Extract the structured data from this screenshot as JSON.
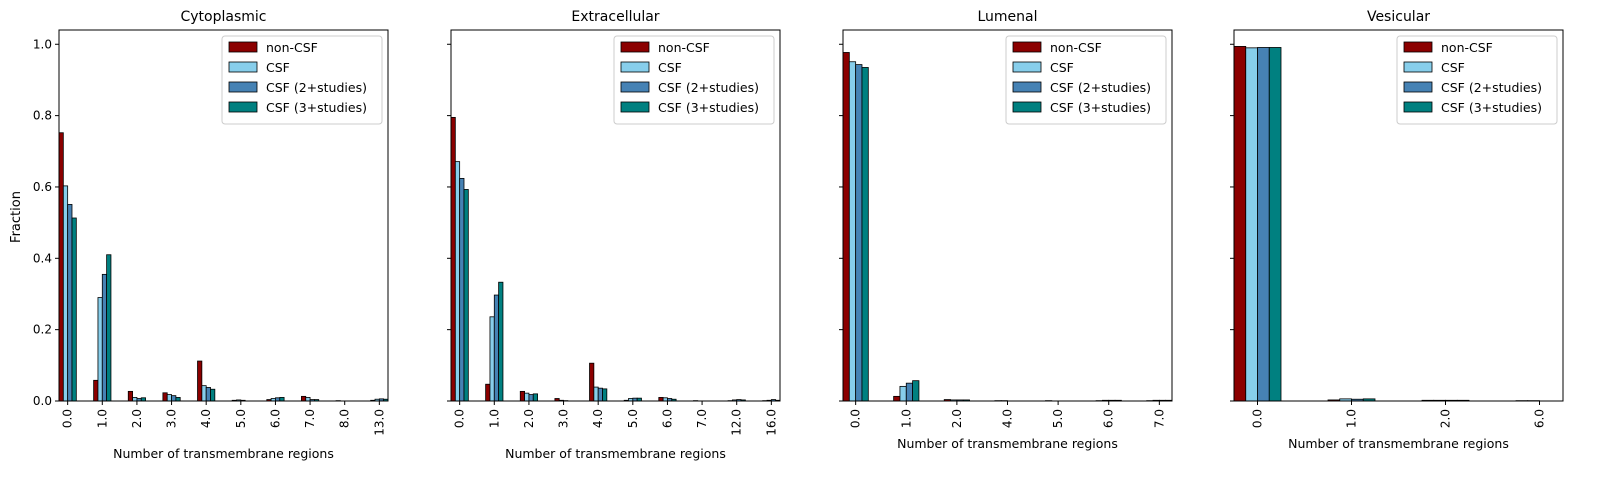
{
  "figure": {
    "ylabel": "Fraction",
    "xlabel": "Number of transmembrane regions",
    "ylim": [
      0,
      1.04
    ],
    "yticks": [
      0.0,
      0.2,
      0.4,
      0.6,
      0.8,
      1.0
    ],
    "legend_position": "upper right",
    "series_colors": [
      "#8b0000",
      "#87ceeb",
      "#4682b4",
      "#008080"
    ]
  },
  "chart_data": [
    {
      "type": "bar",
      "title": "Cytoplasmic",
      "categories": [
        "0.0",
        "1.0",
        "2.0",
        "3.0",
        "4.0",
        "5.0",
        "6.0",
        "7.0",
        "8.0",
        "13.0"
      ],
      "series": [
        {
          "name": "non-CSF",
          "color": "#8b0000",
          "values": [
            0.752,
            0.058,
            0.027,
            0.023,
            0.112,
            0.002,
            0.004,
            0.013,
            0.001,
            0.002
          ]
        },
        {
          "name": "CSF",
          "color": "#87ceeb",
          "values": [
            0.603,
            0.29,
            0.01,
            0.018,
            0.043,
            0.003,
            0.007,
            0.01,
            0.0,
            0.005
          ]
        },
        {
          "name": "CSF (2+studies)",
          "color": "#4682b4",
          "values": [
            0.551,
            0.355,
            0.007,
            0.015,
            0.038,
            0.002,
            0.009,
            0.004,
            0.0,
            0.006
          ]
        },
        {
          "name": "CSF (3+studies)",
          "color": "#008080",
          "values": [
            0.513,
            0.41,
            0.009,
            0.01,
            0.033,
            0.0,
            0.01,
            0.004,
            0.0,
            0.005
          ]
        }
      ]
    },
    {
      "type": "bar",
      "title": "Extracellular",
      "categories": [
        "0.0",
        "1.0",
        "2.0",
        "3.0",
        "4.0",
        "5.0",
        "6.0",
        "7.0",
        "12.0",
        "16.0"
      ],
      "series": [
        {
          "name": "non-CSF",
          "color": "#8b0000",
          "values": [
            0.795,
            0.047,
            0.027,
            0.007,
            0.106,
            0.002,
            0.01,
            0.001,
            0.001,
            0.001
          ]
        },
        {
          "name": "CSF",
          "color": "#87ceeb",
          "values": [
            0.671,
            0.236,
            0.022,
            0.002,
            0.039,
            0.007,
            0.009,
            0.0,
            0.003,
            0.002
          ]
        },
        {
          "name": "CSF (2+studies)",
          "color": "#4682b4",
          "values": [
            0.624,
            0.297,
            0.018,
            0.001,
            0.036,
            0.008,
            0.007,
            0.0,
            0.004,
            0.004
          ]
        },
        {
          "name": "CSF (3+studies)",
          "color": "#008080",
          "values": [
            0.593,
            0.333,
            0.02,
            0.0,
            0.034,
            0.008,
            0.005,
            0.0,
            0.003,
            0.002
          ]
        }
      ]
    },
    {
      "type": "bar",
      "title": "Lumenal",
      "categories": [
        "0.0",
        "1.0",
        "2.0",
        "4.0",
        "5.0",
        "6.0",
        "7.0"
      ],
      "series": [
        {
          "name": "non-CSF",
          "color": "#8b0000",
          "values": [
            0.977,
            0.013,
            0.004,
            0.001,
            0.001,
            0.001,
            0.001
          ]
        },
        {
          "name": "CSF",
          "color": "#87ceeb",
          "values": [
            0.951,
            0.041,
            0.003,
            0.001,
            0.0,
            0.002,
            0.002
          ]
        },
        {
          "name": "CSF (2+studies)",
          "color": "#4682b4",
          "values": [
            0.943,
            0.05,
            0.003,
            0.0,
            0.0,
            0.002,
            0.002
          ]
        },
        {
          "name": "CSF (3+studies)",
          "color": "#008080",
          "values": [
            0.935,
            0.057,
            0.003,
            0.0,
            0.0,
            0.002,
            0.002
          ]
        }
      ]
    },
    {
      "type": "bar",
      "title": "Vesicular",
      "categories": [
        "0.0",
        "1.0",
        "2.0",
        "6.0"
      ],
      "series": [
        {
          "name": "non-CSF",
          "color": "#8b0000",
          "values": [
            0.994,
            0.003,
            0.002,
            0.001
          ]
        },
        {
          "name": "CSF",
          "color": "#87ceeb",
          "values": [
            0.99,
            0.006,
            0.002,
            0.001
          ]
        },
        {
          "name": "CSF (2+studies)",
          "color": "#4682b4",
          "values": [
            0.991,
            0.005,
            0.002,
            0.0
          ]
        },
        {
          "name": "CSF (3+studies)",
          "color": "#008080",
          "values": [
            0.991,
            0.006,
            0.002,
            0.0
          ]
        }
      ]
    }
  ]
}
